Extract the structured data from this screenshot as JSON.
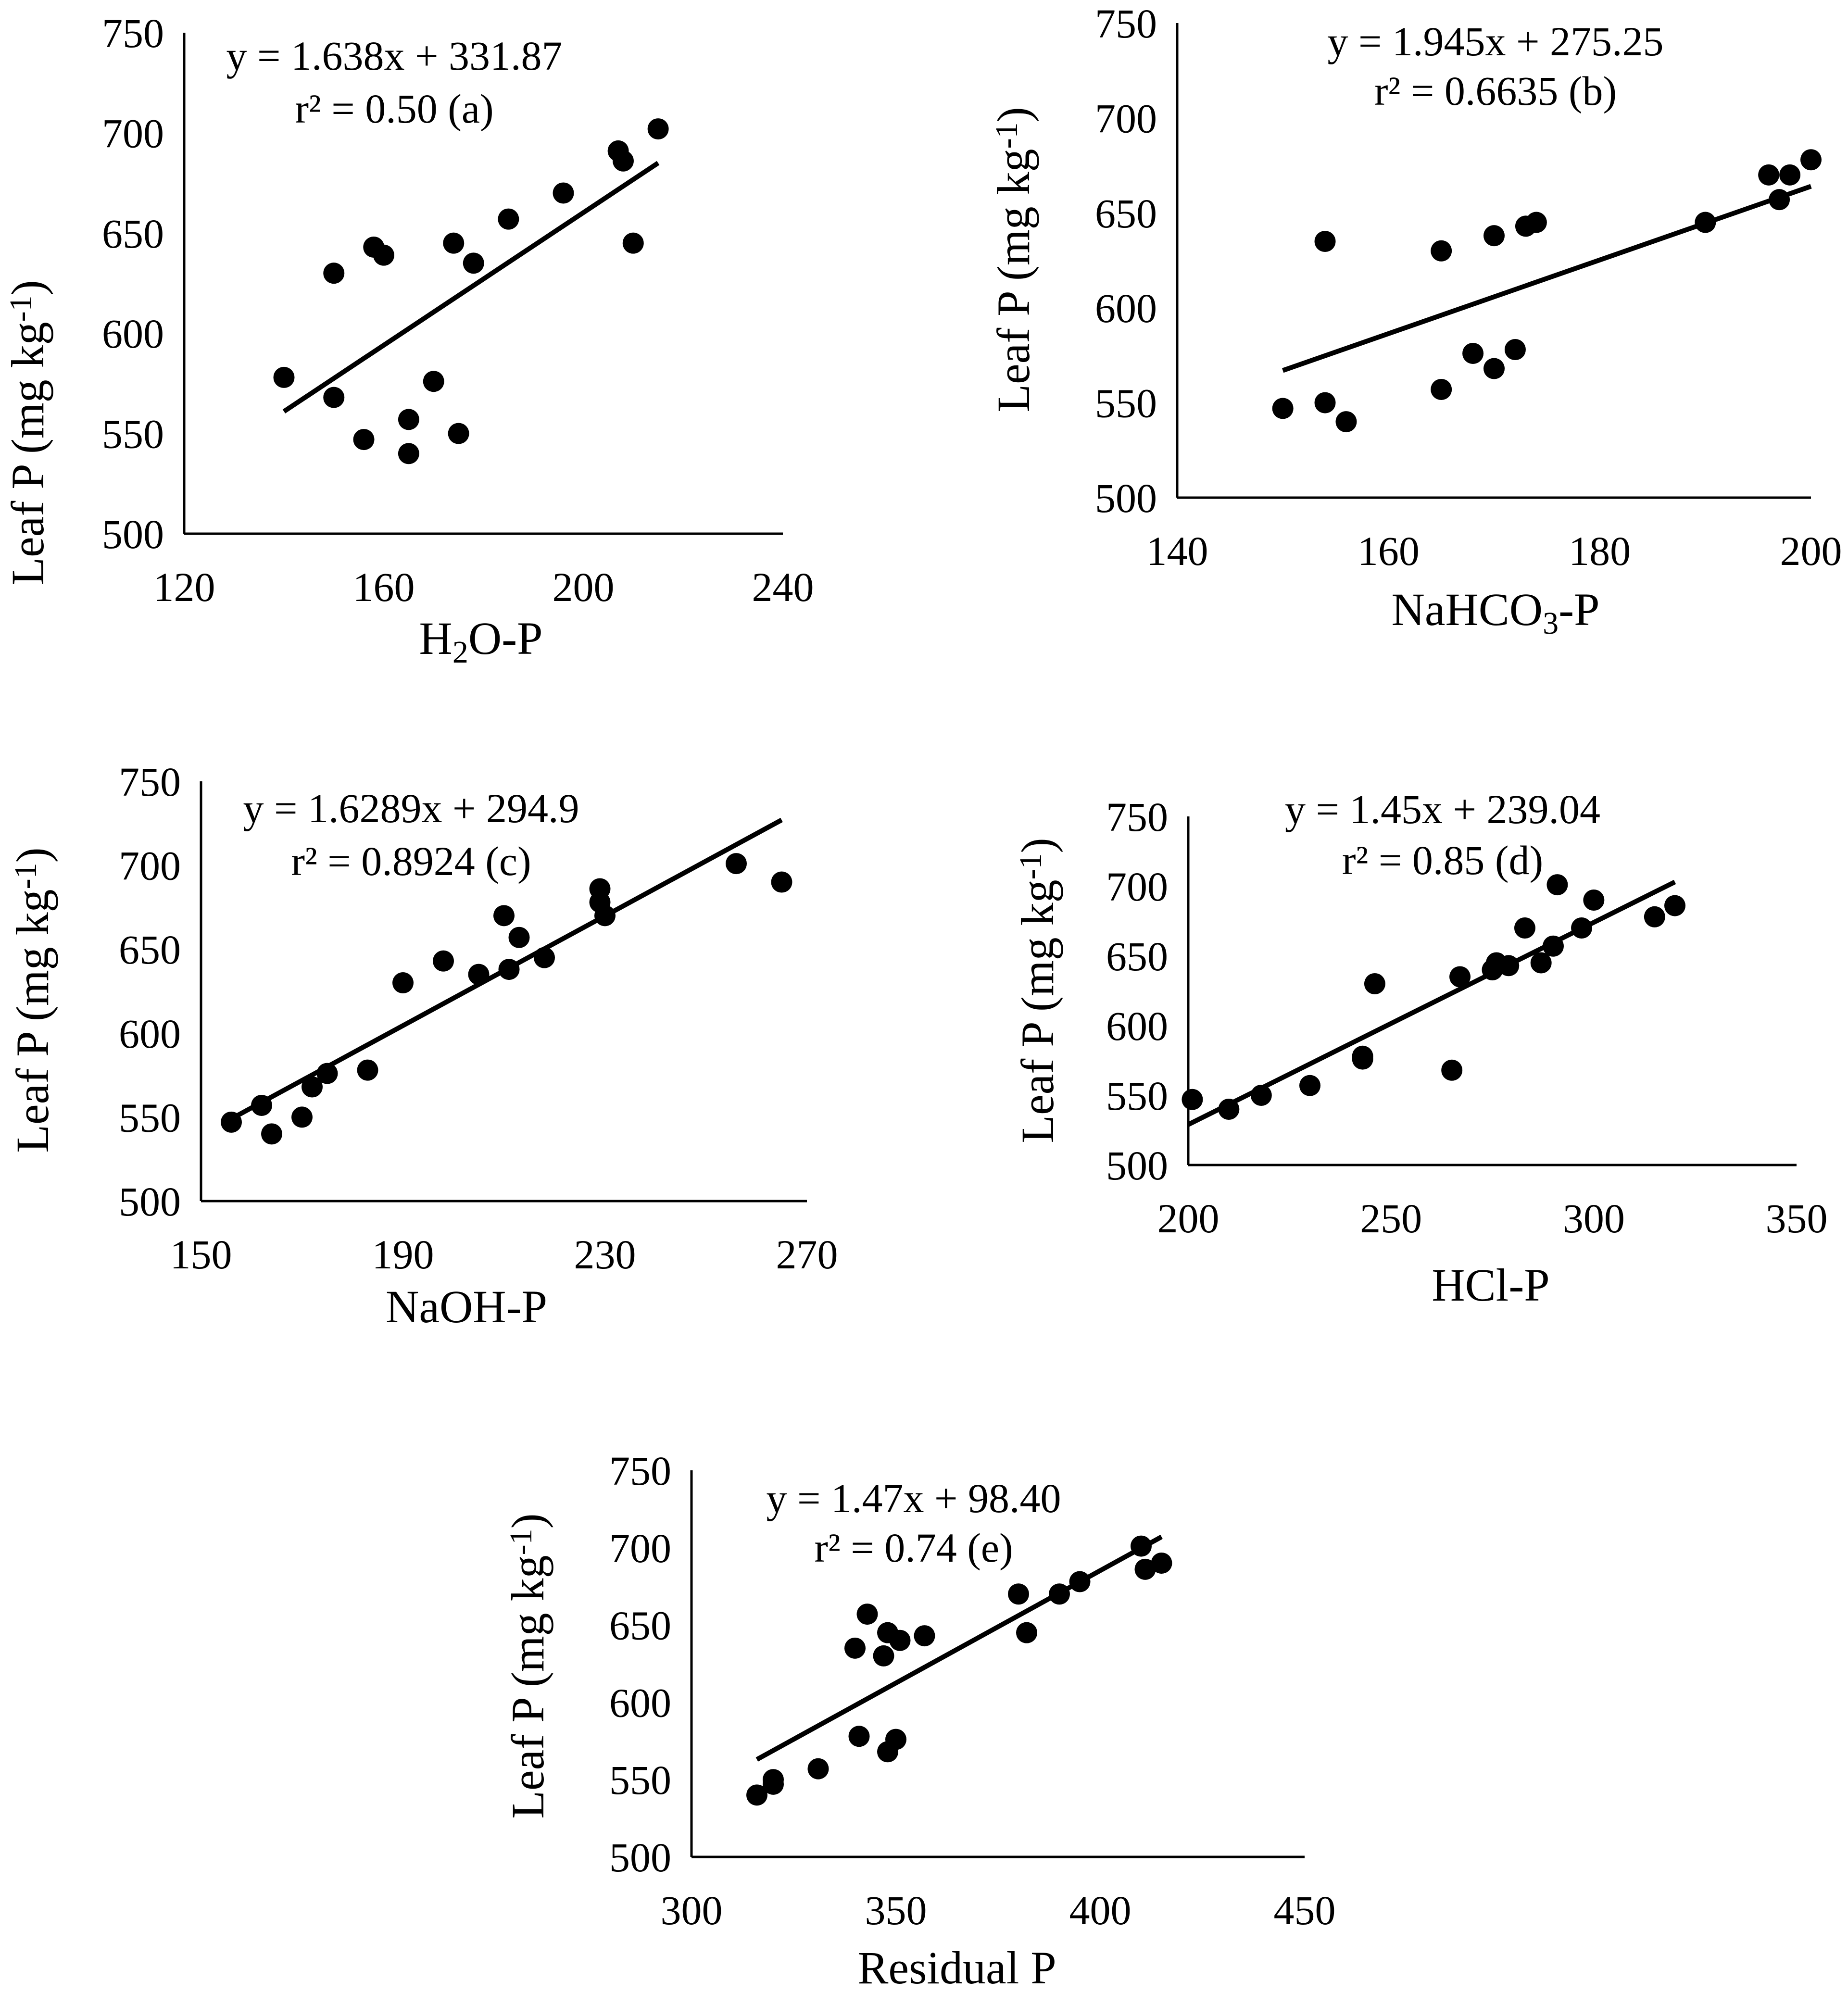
{
  "chart_data": [
    {
      "type": "scatter",
      "panel": "a",
      "xlabel_parts": [
        {
          "t": "H"
        },
        {
          "t": "2",
          "sub": true
        },
        {
          "t": "O-P"
        }
      ],
      "ylabel_parts": [
        {
          "t": "Leaf P (mg kg"
        },
        {
          "t": "-1",
          "sup": true
        },
        {
          "t": ")"
        }
      ],
      "equation": "y = 1.638x + 331.87",
      "r2": "r² = 0.50 (a)",
      "xlim": [
        120,
        240
      ],
      "xticks": [
        120,
        160,
        200,
        240
      ],
      "ylim": [
        500,
        750
      ],
      "yticks": [
        500,
        550,
        600,
        650,
        700,
        750
      ],
      "trend": [
        [
          140,
          561
        ],
        [
          215,
          685
        ]
      ],
      "points": [
        [
          140,
          578
        ],
        [
          150,
          568
        ],
        [
          150,
          630
        ],
        [
          156,
          547
        ],
        [
          158,
          643
        ],
        [
          160,
          639
        ],
        [
          165,
          557
        ],
        [
          165,
          540
        ],
        [
          170,
          576
        ],
        [
          174,
          645
        ],
        [
          175,
          550
        ],
        [
          178,
          635
        ],
        [
          185,
          657
        ],
        [
          196,
          670
        ],
        [
          207,
          691
        ],
        [
          208,
          686
        ],
        [
          210,
          645
        ],
        [
          215,
          702
        ]
      ]
    },
    {
      "type": "scatter",
      "panel": "b",
      "xlabel_parts": [
        {
          "t": "NaHCO"
        },
        {
          "t": "3",
          "sub": true
        },
        {
          "t": "-P"
        }
      ],
      "ylabel_parts": [
        {
          "t": "Leaf P (mg kg"
        },
        {
          "t": "-1",
          "sup": true
        },
        {
          "t": ")"
        }
      ],
      "equation": "y = 1.945x + 275.25",
      "r2": "r² = 0.6635 (b)",
      "xlim": [
        140,
        200
      ],
      "xticks": [
        140,
        160,
        180,
        200
      ],
      "ylim": [
        500,
        750
      ],
      "yticks": [
        500,
        550,
        600,
        650,
        700,
        750
      ],
      "trend": [
        [
          150,
          567
        ],
        [
          200,
          664
        ]
      ],
      "points": [
        [
          150,
          547
        ],
        [
          154,
          550
        ],
        [
          154,
          635
        ],
        [
          156,
          540
        ],
        [
          165,
          557
        ],
        [
          165,
          630
        ],
        [
          168,
          576
        ],
        [
          170,
          568
        ],
        [
          170,
          638
        ],
        [
          172,
          578
        ],
        [
          173,
          643
        ],
        [
          174,
          645
        ],
        [
          190,
          645
        ],
        [
          196,
          670
        ],
        [
          197,
          657
        ],
        [
          198,
          670
        ],
        [
          200,
          678
        ]
      ]
    },
    {
      "type": "scatter",
      "panel": "c",
      "xlabel_parts": [
        {
          "t": "NaOH-P"
        }
      ],
      "ylabel_parts": [
        {
          "t": "Leaf P (mg kg"
        },
        {
          "t": "-1",
          "sup": true
        },
        {
          "t": ")"
        }
      ],
      "equation": "y = 1.6289x + 294.9",
      "r2": "r² = 0.8924 (c)",
      "xlim": [
        150,
        270
      ],
      "xticks": [
        150,
        190,
        230,
        270
      ],
      "ylim": [
        500,
        750
      ],
      "yticks": [
        500,
        550,
        600,
        650,
        700,
        750
      ],
      "trend": [
        [
          156,
          549
        ],
        [
          265,
          727
        ]
      ],
      "points": [
        [
          156,
          547
        ],
        [
          162,
          557
        ],
        [
          164,
          540
        ],
        [
          170,
          550
        ],
        [
          172,
          568
        ],
        [
          175,
          576
        ],
        [
          183,
          578
        ],
        [
          190,
          630
        ],
        [
          198,
          643
        ],
        [
          205,
          635
        ],
        [
          210,
          670
        ],
        [
          211,
          638
        ],
        [
          213,
          657
        ],
        [
          218,
          645
        ],
        [
          229,
          686
        ],
        [
          229,
          678
        ],
        [
          230,
          670
        ],
        [
          256,
          701
        ],
        [
          265,
          690
        ]
      ]
    },
    {
      "type": "scatter",
      "panel": "d",
      "xlabel_parts": [
        {
          "t": "HCl-P"
        }
      ],
      "ylabel_parts": [
        {
          "t": "Leaf P (mg kg"
        },
        {
          "t": "-1",
          "sup": true
        },
        {
          "t": ")"
        }
      ],
      "equation": "y = 1.45x + 239.04",
      "r2": "r² = 0.85 (d)",
      "xlim": [
        200,
        350
      ],
      "xticks": [
        200,
        250,
        300,
        350
      ],
      "ylim": [
        500,
        750
      ],
      "yticks": [
        500,
        550,
        600,
        650,
        700,
        750
      ],
      "trend": [
        [
          200,
          529
        ],
        [
          320,
          703
        ]
      ],
      "points": [
        [
          201,
          547
        ],
        [
          210,
          540
        ],
        [
          218,
          550
        ],
        [
          230,
          557
        ],
        [
          243,
          576
        ],
        [
          243,
          578
        ],
        [
          246,
          630
        ],
        [
          265,
          568
        ],
        [
          267,
          635
        ],
        [
          275,
          640
        ],
        [
          276,
          645
        ],
        [
          279,
          643
        ],
        [
          283,
          670
        ],
        [
          287,
          645
        ],
        [
          290,
          657
        ],
        [
          291,
          701
        ],
        [
          297,
          670
        ],
        [
          300,
          690
        ],
        [
          315,
          678
        ],
        [
          320,
          686
        ]
      ]
    },
    {
      "type": "scatter",
      "panel": "e",
      "xlabel_parts": [
        {
          "t": "Residual P"
        }
      ],
      "ylabel_parts": [
        {
          "t": "Leaf P (mg kg"
        },
        {
          "t": "-1",
          "sup": true
        },
        {
          "t": ")"
        }
      ],
      "equation": "y = 1.47x + 98.40",
      "r2": "r² = 0.74 (e)",
      "xlim": [
        300,
        450
      ],
      "xticks": [
        300,
        350,
        400,
        450
      ],
      "ylim": [
        500,
        750
      ],
      "yticks": [
        500,
        550,
        600,
        650,
        700,
        750
      ],
      "trend": [
        [
          316,
          563
        ],
        [
          415,
          707
        ]
      ],
      "points": [
        [
          316,
          540
        ],
        [
          320,
          547
        ],
        [
          320,
          550
        ],
        [
          331,
          557
        ],
        [
          340,
          635
        ],
        [
          341,
          578
        ],
        [
          343,
          657
        ],
        [
          347,
          630
        ],
        [
          348,
          568
        ],
        [
          348,
          645
        ],
        [
          350,
          576
        ],
        [
          351,
          640
        ],
        [
          357,
          643
        ],
        [
          380,
          670
        ],
        [
          382,
          645
        ],
        [
          390,
          670
        ],
        [
          395,
          678
        ],
        [
          410,
          701
        ],
        [
          411,
          686
        ],
        [
          415,
          690
        ]
      ]
    }
  ]
}
